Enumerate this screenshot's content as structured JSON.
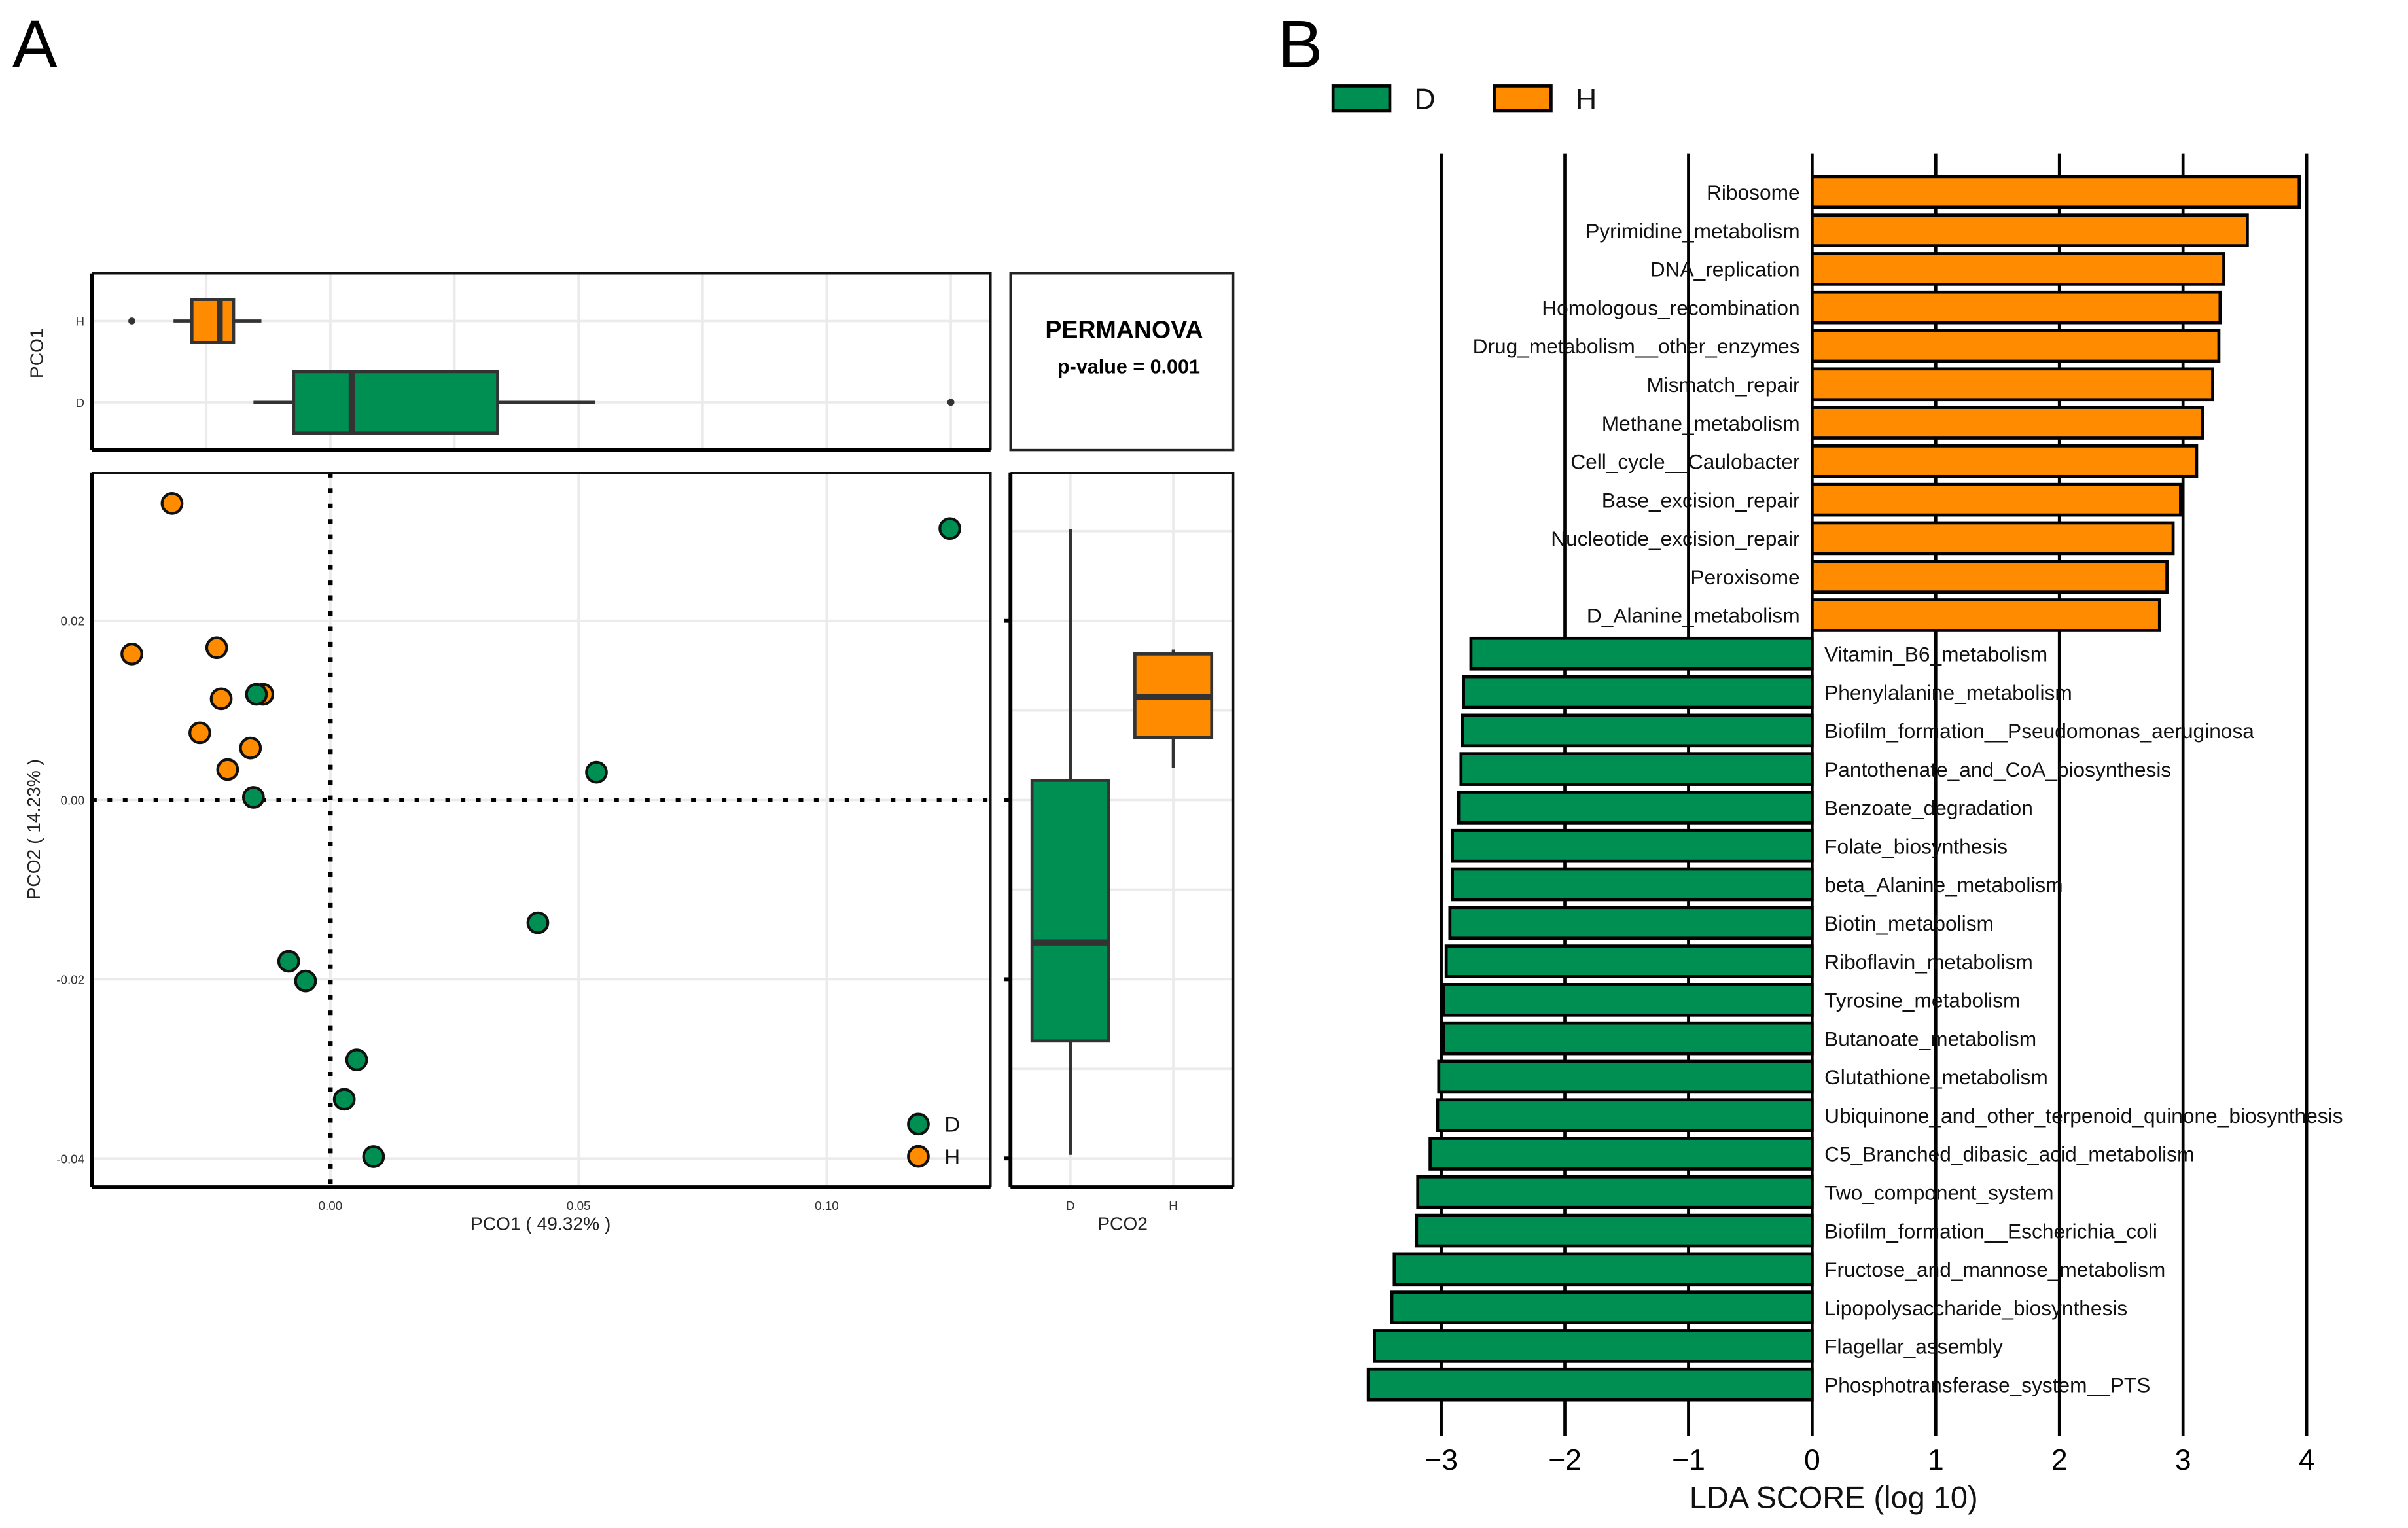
{
  "colors": {
    "D": "#008f52",
    "H": "#ff8c00",
    "outline": "#111111",
    "boxline": "#333333"
  },
  "chart_data": [
    {
      "panel": "A",
      "type": "scatter",
      "title": "",
      "xlabel": "PCO1 ( 49.32% )",
      "ylabel": "PCO2 ( 14.23% )",
      "xlim": [
        -0.048,
        0.133
      ],
      "ylim": [
        -0.0432,
        0.0365
      ],
      "xticks": [
        {
          "v": 0.0,
          "label": "0.00"
        },
        {
          "v": 0.05,
          "label": "0.05"
        },
        {
          "v": 0.1,
          "label": "0.10"
        }
      ],
      "yticks": [
        {
          "v": 0.02,
          "label": "0.02"
        },
        {
          "v": 0.0,
          "label": "0.00"
        },
        {
          "v": -0.02,
          "label": "-0.02"
        },
        {
          "v": -0.04,
          "label": "-0.04"
        }
      ],
      "legend": {
        "position": "bottom-right",
        "entries": [
          "D",
          "H"
        ]
      },
      "series": [
        {
          "name": "H",
          "points": [
            [
              -0.0319,
              0.0331
            ],
            [
              -0.04,
              0.0163
            ],
            [
              -0.0229,
              0.017
            ],
            [
              -0.022,
              0.0113
            ],
            [
              -0.0136,
              0.0118
            ],
            [
              -0.0263,
              0.0075
            ],
            [
              -0.0161,
              0.0058
            ],
            [
              -0.0207,
              0.0034
            ]
          ]
        },
        {
          "name": "D",
          "points": [
            [
              0.1248,
              0.0303
            ],
            [
              -0.0149,
              0.0118
            ],
            [
              -0.0155,
              0.0003
            ],
            [
              0.0536,
              0.0031
            ],
            [
              0.0418,
              -0.0137
            ],
            [
              -0.0084,
              -0.018
            ],
            [
              -0.005,
              -0.0202
            ],
            [
              0.0053,
              -0.029
            ],
            [
              0.0028,
              -0.0334
            ],
            [
              0.0087,
              -0.0398
            ]
          ]
        }
      ],
      "reference_lines": {
        "x": 0,
        "y": 0
      }
    },
    {
      "panel": "A-top",
      "type": "boxplot",
      "ylabel": "PCO1",
      "categories": [
        "H",
        "D"
      ],
      "boxes": [
        {
          "name": "H",
          "whisker_low": -0.0316,
          "q1": -0.0279,
          "median": -0.0223,
          "q3": -0.0195,
          "whisker_high": -0.0139,
          "outliers": [
            -0.04
          ]
        },
        {
          "name": "D",
          "whisker_low": -0.0155,
          "q1": -0.0074,
          "median": 0.0043,
          "q3": 0.0337,
          "whisker_high": 0.0533,
          "outliers": [
            0.125
          ]
        }
      ]
    },
    {
      "panel": "A-right",
      "type": "boxplot",
      "xlabel": "PCO2",
      "categories": [
        "D",
        "H"
      ],
      "boxes": [
        {
          "name": "D",
          "whisker_low": -0.0396,
          "q1": -0.0269,
          "median": -0.0159,
          "q3": 0.0022,
          "whisker_high": 0.0302,
          "outliers": []
        },
        {
          "name": "H",
          "whisker_low": 0.0036,
          "q1": 0.007,
          "median": 0.0115,
          "q3": 0.0163,
          "whisker_high": 0.0168,
          "outliers": []
        }
      ]
    },
    {
      "panel": "B",
      "type": "bar",
      "orientation": "horizontal",
      "xlabel": "LDA SCORE (log 10)",
      "xlim": [
        -3.7,
        4.1
      ],
      "xticks": [
        {
          "v": -3,
          "label": "−3"
        },
        {
          "v": -2,
          "label": "−2"
        },
        {
          "v": -1,
          "label": "−1"
        },
        {
          "v": 0,
          "label": "0"
        },
        {
          "v": 1,
          "label": "1"
        },
        {
          "v": 2,
          "label": "2"
        },
        {
          "v": 3,
          "label": "3"
        },
        {
          "v": 4,
          "label": "4"
        }
      ],
      "legend": {
        "position": "top-left",
        "entries": [
          "D",
          "H"
        ]
      },
      "bars": [
        {
          "label": "Ribosome",
          "group": "H",
          "value": 3.94
        },
        {
          "label": "Pyrimidine_metabolism",
          "group": "H",
          "value": 3.52
        },
        {
          "label": "DNA_replication",
          "group": "H",
          "value": 3.33
        },
        {
          "label": "Homologous_recombination",
          "group": "H",
          "value": 3.3
        },
        {
          "label": "Drug_metabolism__other_enzymes",
          "group": "H",
          "value": 3.29
        },
        {
          "label": "Mismatch_repair",
          "group": "H",
          "value": 3.24
        },
        {
          "label": "Methane_metabolism",
          "group": "H",
          "value": 3.16
        },
        {
          "label": "Cell_cycle__Caulobacter",
          "group": "H",
          "value": 3.11
        },
        {
          "label": "Base_excision_repair",
          "group": "H",
          "value": 2.98
        },
        {
          "label": "Nucleotide_excision_repair",
          "group": "H",
          "value": 2.92
        },
        {
          "label": "Peroxisome",
          "group": "H",
          "value": 2.87
        },
        {
          "label": "D_Alanine_metabolism",
          "group": "H",
          "value": 2.81
        },
        {
          "label": "Vitamin_B6_metabolism",
          "group": "D",
          "value": -2.76
        },
        {
          "label": "Phenylalanine_metabolism",
          "group": "D",
          "value": -2.82
        },
        {
          "label": "Biofilm_formation__Pseudomonas_aeruginosa",
          "group": "D",
          "value": -2.83
        },
        {
          "label": "Pantothenate_and_CoA_biosynthesis",
          "group": "D",
          "value": -2.84
        },
        {
          "label": "Benzoate_degradation",
          "group": "D",
          "value": -2.86
        },
        {
          "label": "Folate_biosynthesis",
          "group": "D",
          "value": -2.91
        },
        {
          "label": "beta_Alanine_metabolism",
          "group": "D",
          "value": -2.91
        },
        {
          "label": "Biotin_metabolism",
          "group": "D",
          "value": -2.93
        },
        {
          "label": "Riboflavin_metabolism",
          "group": "D",
          "value": -2.96
        },
        {
          "label": "Tyrosine_metabolism",
          "group": "D",
          "value": -2.98
        },
        {
          "label": "Butanoate_metabolism",
          "group": "D",
          "value": -2.98
        },
        {
          "label": "Glutathione_metabolism",
          "group": "D",
          "value": -3.02
        },
        {
          "label": "Ubiquinone_and_other_terpenoid_quinone_biosynthesis",
          "group": "D",
          "value": -3.03
        },
        {
          "label": "C5_Branched_dibasic_acid_metabolism",
          "group": "D",
          "value": -3.09
        },
        {
          "label": "Two_component_system",
          "group": "D",
          "value": -3.19
        },
        {
          "label": "Biofilm_formation__Escherichia_coli",
          "group": "D",
          "value": -3.2
        },
        {
          "label": "Fructose_and_mannose_metabolism",
          "group": "D",
          "value": -3.38
        },
        {
          "label": "Lipopolysaccharide_biosynthesis",
          "group": "D",
          "value": -3.4
        },
        {
          "label": "Flagellar_assembly",
          "group": "D",
          "value": -3.54
        },
        {
          "label": "Phosphotransferase_system__PTS",
          "group": "D",
          "value": -3.59
        }
      ]
    }
  ],
  "panel_labels": {
    "a": "A",
    "b": "B"
  },
  "permanova": {
    "title": "PERMANOVA",
    "pvalue": "p-value = 0.001"
  }
}
